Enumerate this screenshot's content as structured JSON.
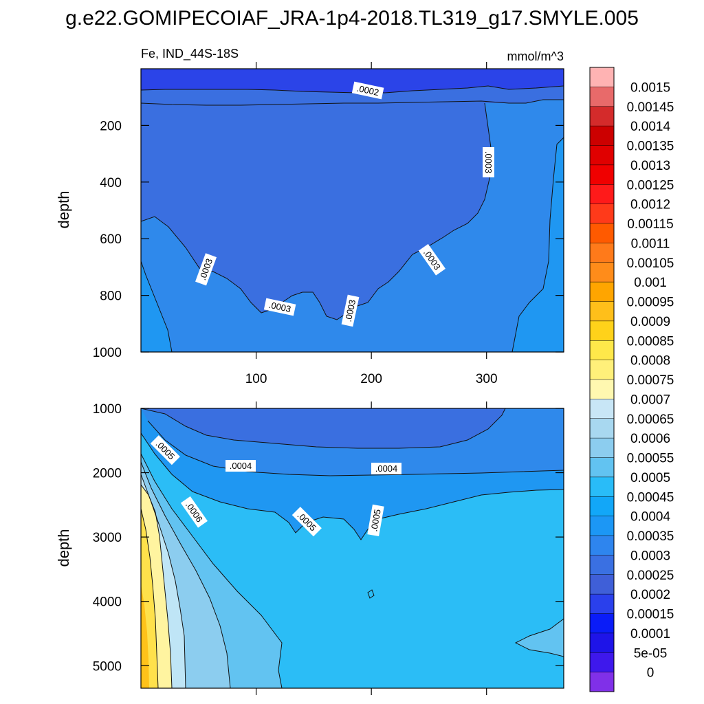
{
  "figure": {
    "title": "g.e22.GOMIPECOIAF_JRA-1p4-2018.TL319_g17.SMYLE.005",
    "variable_label": "Fe, IND_44S-18S",
    "units_label": "mmol/m^3"
  },
  "chart_data": [
    {
      "type": "heatmap",
      "subtype": "filled-contour",
      "panel": "upper",
      "ylabel": "depth",
      "xlabel": "",
      "xlim": [
        0,
        367
      ],
      "ylim": [
        1000,
        0
      ],
      "x_ticks": [
        100,
        200,
        300
      ],
      "y_ticks": [
        200,
        400,
        600,
        800,
        1000
      ],
      "contour_labels": [
        ".0002",
        ".0003",
        ".0003",
        ".0003",
        ".0003",
        ".0003"
      ],
      "regions": [
        {
          "level": 0.0002,
          "description": "surface layer 0-75 m",
          "color": "#2b44e8"
        },
        {
          "level": 0.00025,
          "description": "75-100 m layer and bowl interior",
          "color": "#3a6fe0"
        },
        {
          "level": 0.0003,
          "description": "flanks and deep 800-1000 m",
          "color": "#2f89eb"
        },
        {
          "level": 0.00035,
          "description": "bottom-left and right-edge deep",
          "color": "#1f97f2"
        }
      ],
      "grid": false
    },
    {
      "type": "heatmap",
      "subtype": "filled-contour",
      "panel": "lower",
      "ylabel": "depth",
      "xlabel": "",
      "xlim": [
        0,
        367
      ],
      "ylim": [
        5350,
        1000
      ],
      "y_ticks": [
        1000,
        2000,
        3000,
        4000,
        5000
      ],
      "contour_labels": [
        ".0005",
        ".0004",
        ".0004",
        ".0006",
        ".0005",
        ".0005"
      ],
      "regions": [
        {
          "level": 0.00025,
          "description": "1000-1700 m top band",
          "color": "#3a6fe0"
        },
        {
          "level": 0.0003,
          "description": "1700-2050 m",
          "color": "#2f89eb"
        },
        {
          "level": 0.00035,
          "description": "2050-2600 m",
          "color": "#1f97f2"
        },
        {
          "level": 0.00045,
          "description": "2600-5350 m bulk",
          "color": "#2bbdf6"
        },
        {
          "level": 0.0005,
          "description": "west wedge and bottom right",
          "color": "#62c3f1"
        },
        {
          "level": 0.0006,
          "description": "western boundary",
          "color": "#8ccdef"
        },
        {
          "level": 0.0007,
          "description": "western boundary",
          "color": "#bfe5f6"
        },
        {
          "level": 0.0008,
          "description": "western boundary core",
          "color": "#ffe14b"
        },
        {
          "level": 0.0009,
          "description": "western boundary deep core",
          "color": "#ffc21a"
        }
      ],
      "grid": false
    }
  ],
  "colorbar": {
    "labels": [
      "0.0015",
      "0.00145",
      "0.0014",
      "0.00135",
      "0.0013",
      "0.00125",
      "0.0012",
      "0.00115",
      "0.0011",
      "0.00105",
      "0.001",
      "0.00095",
      "0.0009",
      "0.00085",
      "0.0008",
      "0.00075",
      "0.0007",
      "0.00065",
      "0.0006",
      "0.00055",
      "0.0005",
      "0.00045",
      "0.0004",
      "0.00035",
      "0.0003",
      "0.00025",
      "0.0002",
      "0.00015",
      "0.0001",
      "5e-05",
      "0"
    ],
    "colors": [
      "#ffb3b3",
      "#e86a6a",
      "#d42b2b",
      "#cc0000",
      "#e00000",
      "#f00000",
      "#ff1a1a",
      "#ff3a1a",
      "#ff5a00",
      "#ff7a1a",
      "#ff8c1a",
      "#ffa500",
      "#ffbf1a",
      "#ffd21a",
      "#ffe84a",
      "#fff07a",
      "#fff8b0",
      "#c8e6f6",
      "#a8d8f0",
      "#8ccdef",
      "#62c3f1",
      "#29bcf8",
      "#12a7f8",
      "#1c97f5",
      "#2e85ee",
      "#3a70e2",
      "#3f5fd8",
      "#2a40ec",
      "#0a1cf8",
      "#1e14e8",
      "#3e18ec",
      "#8030e8"
    ]
  }
}
